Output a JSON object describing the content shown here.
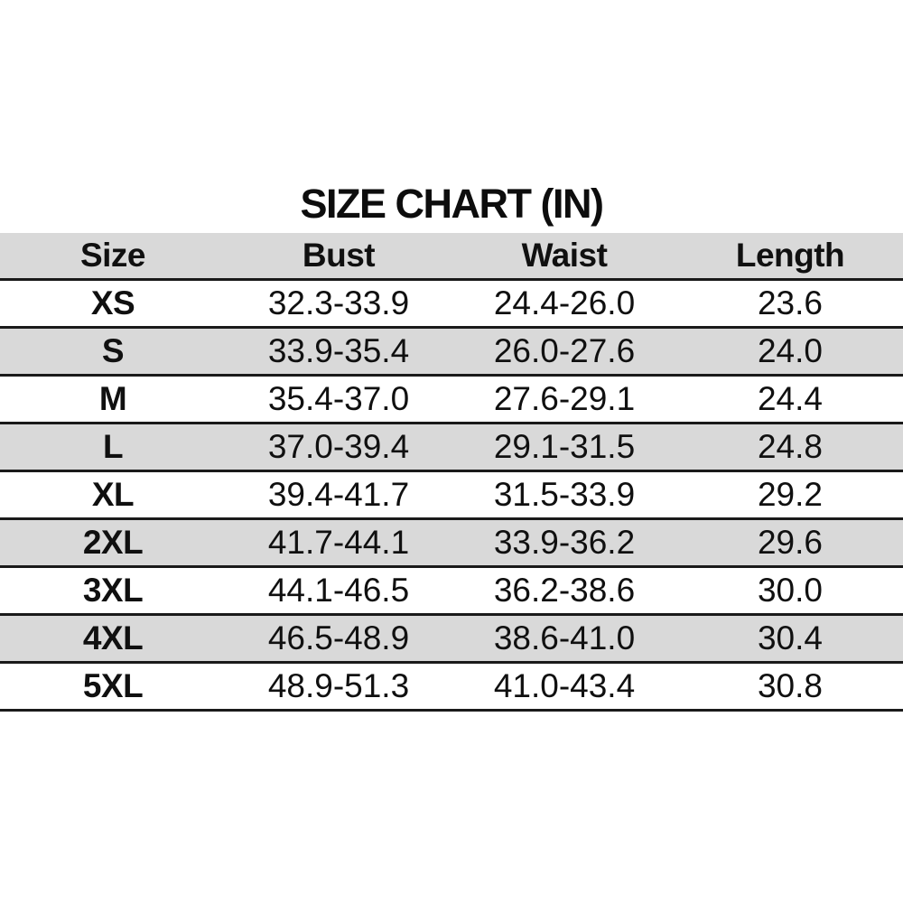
{
  "title": "SIZE CHART (IN)",
  "colors": {
    "background": "#ffffff",
    "header_row_bg": "#d9d9d9",
    "alt_row_bg": "#d9d9d9",
    "row_bg": "#ffffff",
    "divider_line": "#1a1a1a",
    "text": "#101010"
  },
  "chart_data": {
    "type": "table",
    "title": "SIZE CHART (IN)",
    "unit": "IN",
    "columns": [
      "Size",
      "Bust",
      "Waist",
      "Length"
    ],
    "rows": [
      [
        "XS",
        "32.3-33.9",
        "24.4-26.0",
        "23.6"
      ],
      [
        "S",
        "33.9-35.4",
        "26.0-27.6",
        "24.0"
      ],
      [
        "M",
        "35.4-37.0",
        "27.6-29.1",
        "24.4"
      ],
      [
        "L",
        "37.0-39.4",
        "29.1-31.5",
        "24.8"
      ],
      [
        "XL",
        "39.4-41.7",
        "31.5-33.9",
        "29.2"
      ],
      [
        "2XL",
        "41.7-44.1",
        "33.9-36.2",
        "29.6"
      ],
      [
        "3XL",
        "44.1-46.5",
        "36.2-38.6",
        "30.0"
      ],
      [
        "4XL",
        "46.5-48.9",
        "38.6-41.0",
        "30.4"
      ],
      [
        "5XL",
        "48.9-51.3",
        "41.0-43.4",
        "30.8"
      ]
    ],
    "layout_hints": {
      "striped": true,
      "stripe_pattern": "header gray, then alternating white/gray starting white",
      "all_cells_centered": true,
      "full_width": true
    }
  }
}
